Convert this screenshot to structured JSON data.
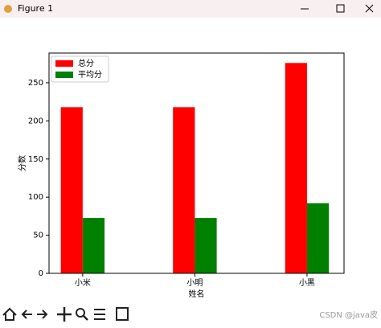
{
  "window": {
    "title": "Figure 1"
  },
  "chart_data": {
    "type": "bar",
    "x_label": "姓名",
    "y_label": "分数",
    "categories": [
      "小米",
      "小明",
      "小黑"
    ],
    "series": [
      {
        "name": "总分",
        "color": "#ff0000",
        "values": [
          218,
          218,
          276
        ]
      },
      {
        "name": "平均分",
        "color": "#008000",
        "values": [
          72.7,
          72.7,
          92
        ]
      }
    ],
    "ylim": [
      0,
      289
    ],
    "yticks": [
      0,
      50,
      100,
      150,
      200,
      250
    ],
    "legend": "upper left"
  },
  "watermark": "CSDN @java皮"
}
